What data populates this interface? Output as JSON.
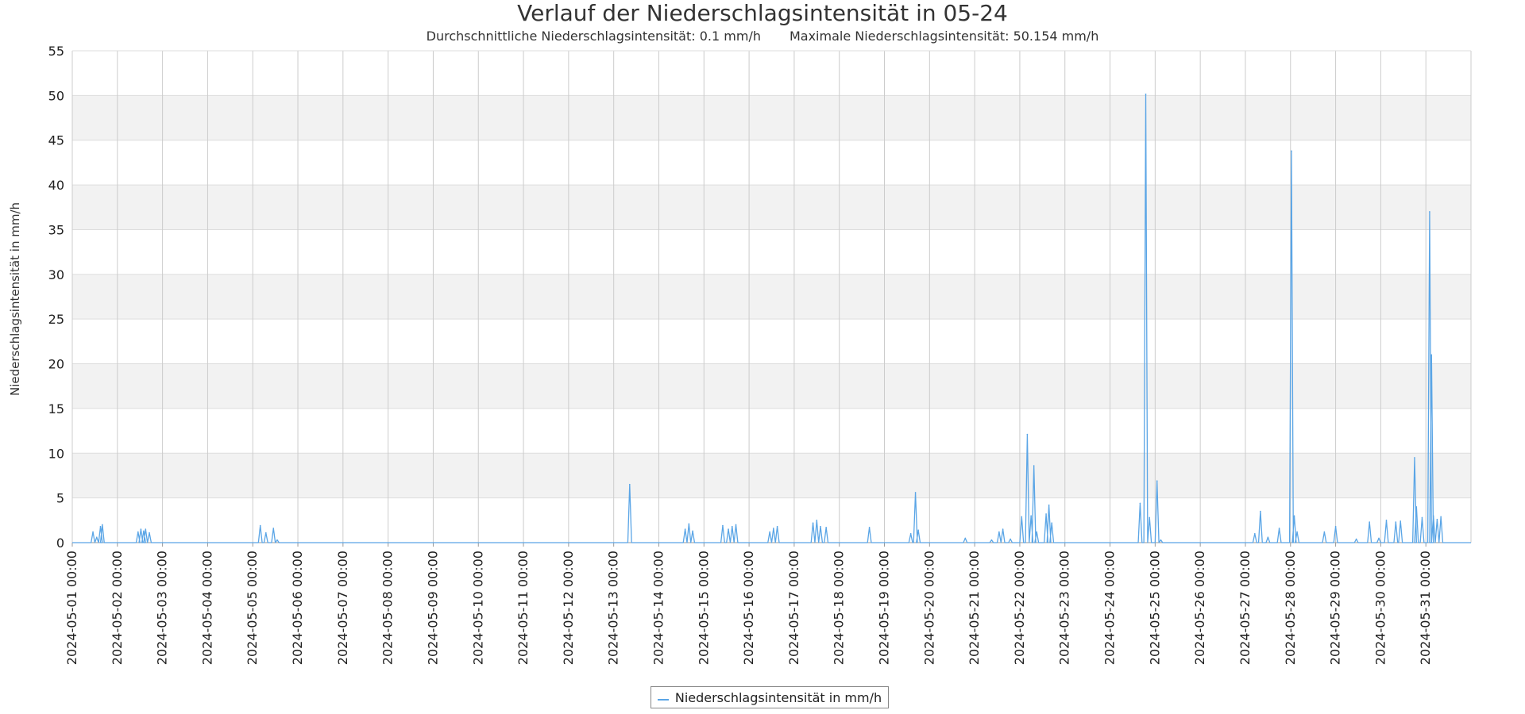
{
  "chart_data": {
    "type": "line",
    "title": "Verlauf der Niederschlagsintensität in 05-24",
    "subtitle_avg": "Durchschnittliche Niederschlagsintensität: 0.1 mm/h",
    "subtitle_max": "Maximale Niederschlagsintensität: 50.154 mm/h",
    "ylabel": "Niederschlagsintensität in mm/h",
    "xlabel": "",
    "ylim": [
      0,
      55
    ],
    "y_ticks": [
      "0",
      "5",
      "10",
      "15",
      "20",
      "25",
      "30",
      "35",
      "40",
      "45",
      "50",
      "55"
    ],
    "xlim": [
      "2024-05-01 00:00",
      "2024-06-01 00:00"
    ],
    "x_ticks": [
      "2024-05-01 00:00",
      "2024-05-02 00:00",
      "2024-05-03 00:00",
      "2024-05-04 00:00",
      "2024-05-05 00:00",
      "2024-05-06 00:00",
      "2024-05-07 00:00",
      "2024-05-08 00:00",
      "2024-05-09 00:00",
      "2024-05-10 00:00",
      "2024-05-11 00:00",
      "2024-05-12 00:00",
      "2024-05-13 00:00",
      "2024-05-14 00:00",
      "2024-05-15 00:00",
      "2024-05-16 00:00",
      "2024-05-17 00:00",
      "2024-05-18 00:00",
      "2024-05-19 00:00",
      "2024-05-20 00:00",
      "2024-05-21 00:00",
      "2024-05-22 00:00",
      "2024-05-23 00:00",
      "2024-05-24 00:00",
      "2024-05-25 00:00",
      "2024-05-26 00:00",
      "2024-05-27 00:00",
      "2024-05-28 00:00",
      "2024-05-29 00:00",
      "2024-05-30 00:00",
      "2024-05-31 00:00"
    ],
    "grid": true,
    "legend_position": "bottom-center",
    "series": [
      {
        "name": "Niederschlagsintensität in mm/h",
        "color": "#5aa5e6",
        "points": [
          [
            "2024-05-01 11:00",
            1.2
          ],
          [
            "2024-05-01 13:00",
            0.6
          ],
          [
            "2024-05-01 15:00",
            1.8
          ],
          [
            "2024-05-01 16:00",
            2.0
          ],
          [
            "2024-05-02 11:00",
            1.2
          ],
          [
            "2024-05-02 12:30",
            1.5
          ],
          [
            "2024-05-02 14:00",
            1.3
          ],
          [
            "2024-05-02 15:00",
            1.5
          ],
          [
            "2024-05-02 17:00",
            1.1
          ],
          [
            "2024-05-05 04:00",
            1.9
          ],
          [
            "2024-05-05 07:00",
            1.1
          ],
          [
            "2024-05-05 11:00",
            1.6
          ],
          [
            "2024-05-05 13:00",
            0.3
          ],
          [
            "2024-05-13 08:30",
            6.5
          ],
          [
            "2024-05-14 14:00",
            1.5
          ],
          [
            "2024-05-14 16:00",
            2.1
          ],
          [
            "2024-05-14 18:00",
            1.3
          ],
          [
            "2024-05-15 10:00",
            1.9
          ],
          [
            "2024-05-15 13:00",
            1.5
          ],
          [
            "2024-05-15 15:00",
            1.8
          ],
          [
            "2024-05-15 17:00",
            2.0
          ],
          [
            "2024-05-16 11:00",
            1.2
          ],
          [
            "2024-05-16 13:00",
            1.6
          ],
          [
            "2024-05-16 15:00",
            1.8
          ],
          [
            "2024-05-17 10:00",
            2.2
          ],
          [
            "2024-05-17 12:00",
            2.5
          ],
          [
            "2024-05-17 14:00",
            1.8
          ],
          [
            "2024-05-17 17:00",
            1.7
          ],
          [
            "2024-05-18 16:00",
            1.7
          ],
          [
            "2024-05-19 14:00",
            1.0
          ],
          [
            "2024-05-19 16:30",
            5.6
          ],
          [
            "2024-05-19 18:00",
            1.4
          ],
          [
            "2024-05-20 19:00",
            0.5
          ],
          [
            "2024-05-21 09:00",
            0.3
          ],
          [
            "2024-05-21 13:00",
            1.2
          ],
          [
            "2024-05-21 15:00",
            1.5
          ],
          [
            "2024-05-21 19:00",
            0.4
          ],
          [
            "2024-05-22 01:00",
            2.9
          ],
          [
            "2024-05-22 04:00",
            12.1
          ],
          [
            "2024-05-22 06:00",
            3.0
          ],
          [
            "2024-05-22 07:30",
            8.6
          ],
          [
            "2024-05-22 09:00",
            1.2
          ],
          [
            "2024-05-22 14:00",
            3.2
          ],
          [
            "2024-05-22 15:30",
            4.2
          ],
          [
            "2024-05-22 17:00",
            2.2
          ],
          [
            "2024-05-24 16:00",
            4.4
          ],
          [
            "2024-05-24 19:00",
            50.15
          ],
          [
            "2024-05-24 21:00",
            2.8
          ],
          [
            "2024-05-25 01:00",
            6.9
          ],
          [
            "2024-05-25 03:00",
            0.3
          ],
          [
            "2024-05-27 05:00",
            1.0
          ],
          [
            "2024-05-27 08:00",
            3.5
          ],
          [
            "2024-05-27 12:00",
            0.6
          ],
          [
            "2024-05-27 18:00",
            1.6
          ],
          [
            "2024-05-28 00:30",
            43.8
          ],
          [
            "2024-05-28 02:00",
            3.0
          ],
          [
            "2024-05-28 03:30",
            1.2
          ],
          [
            "2024-05-28 18:00",
            1.2
          ],
          [
            "2024-05-29 00:00",
            1.8
          ],
          [
            "2024-05-29 11:00",
            0.4
          ],
          [
            "2024-05-29 18:00",
            2.3
          ],
          [
            "2024-05-29 23:00",
            0.5
          ],
          [
            "2024-05-30 03:00",
            2.5
          ],
          [
            "2024-05-30 08:00",
            2.3
          ],
          [
            "2024-05-30 10:30",
            2.4
          ],
          [
            "2024-05-30 18:00",
            9.5
          ],
          [
            "2024-05-30 19:00",
            4.0
          ],
          [
            "2024-05-30 22:00",
            2.8
          ],
          [
            "2024-05-31 02:00",
            37.0
          ],
          [
            "2024-05-31 03:00",
            21.0
          ],
          [
            "2024-05-31 04:00",
            3.0
          ],
          [
            "2024-05-31 06:00",
            2.6
          ],
          [
            "2024-05-31 08:00",
            2.9
          ]
        ]
      }
    ]
  }
}
